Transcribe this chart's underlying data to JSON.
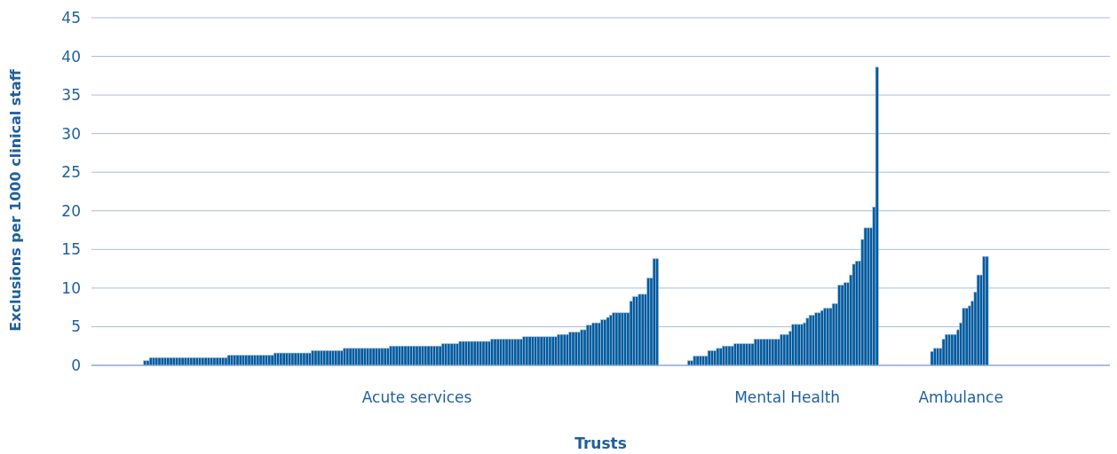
{
  "chart_data": {
    "type": "bar",
    "xlabel": "Trusts",
    "ylabel": "Exclusions per 1000 clinical staff",
    "color": "#005a9c",
    "ylim": [
      0,
      45
    ],
    "yticks": [
      0,
      5,
      10,
      15,
      20,
      25,
      30,
      35,
      40,
      45
    ],
    "grid": "y",
    "categories": [
      null,
      null,
      null,
      null,
      null,
      null,
      null,
      null,
      null,
      null,
      null,
      null,
      null,
      null,
      null,
      null,
      null,
      null,
      null,
      null,
      null,
      null,
      null,
      null,
      null,
      null,
      null,
      null,
      null,
      null,
      null,
      null,
      null,
      null,
      null,
      null,
      null,
      null,
      null,
      null,
      null,
      null,
      null,
      null,
      null,
      null,
      null,
      null,
      null,
      null,
      null,
      null,
      null,
      null,
      null,
      null,
      null,
      null,
      null,
      null,
      null,
      null,
      null,
      null,
      null,
      null,
      null,
      null,
      null,
      null,
      null,
      null,
      null,
      null,
      null,
      null,
      null,
      null,
      null,
      null,
      null,
      null,
      null,
      null,
      null,
      null,
      null,
      null,
      null,
      null,
      null,
      null,
      null,
      null,
      null,
      null,
      null,
      null,
      null,
      null,
      null,
      null,
      null,
      null,
      null,
      null,
      null,
      null,
      null,
      null,
      null,
      null,
      "Acute services",
      null,
      null,
      null,
      null,
      null,
      null,
      null,
      null,
      null,
      null,
      null,
      null,
      null,
      null,
      null,
      null,
      null,
      null,
      null,
      null,
      null,
      null,
      null,
      null,
      null,
      null,
      null,
      null,
      null,
      null,
      null,
      null,
      null,
      null,
      null,
      null,
      null,
      null,
      null,
      null,
      null,
      null,
      null,
      null,
      null,
      null,
      null,
      null,
      null,
      null,
      null,
      null,
      null,
      null,
      null,
      null,
      null,
      null,
      null,
      null,
      null,
      null,
      null,
      null,
      null,
      null,
      null,
      null,
      null,
      null,
      null,
      null,
      null,
      null,
      null,
      null,
      null,
      null,
      null,
      null,
      null,
      null,
      null,
      null,
      null,
      null,
      null,
      null,
      null,
      null,
      null,
      null,
      null,
      null,
      null,
      null,
      null,
      null,
      null,
      null,
      null,
      null,
      null,
      null,
      null,
      null,
      null,
      null,
      null,
      null,
      null,
      null,
      null,
      null,
      null,
      null,
      null,
      null,
      null,
      null,
      null,
      null,
      null,
      null,
      null,
      null,
      null,
      "Mental Health",
      null,
      null,
      null,
      null,
      null,
      null,
      null,
      null,
      null,
      null,
      null,
      null,
      null,
      null,
      null,
      null,
      null,
      null,
      null,
      null,
      null,
      null,
      null,
      null,
      null,
      null,
      null,
      null,
      null,
      null,
      null,
      null,
      null,
      null,
      null,
      null,
      null,
      null,
      null,
      null,
      null,
      null,
      null,
      null,
      null,
      null,
      null,
      null,
      null,
      null,
      null,
      null,
      null,
      null,
      null,
      null,
      null,
      null,
      null,
      "Ambulance",
      null,
      null,
      null,
      null,
      null,
      null,
      null,
      null,
      null,
      null,
      null,
      null,
      null,
      null,
      null,
      null,
      null,
      null,
      null,
      null,
      null,
      null,
      null,
      null,
      null,
      null,
      null,
      null,
      null,
      null,
      null,
      null,
      null,
      null,
      null,
      null,
      null,
      null,
      null,
      null,
      null,
      null,
      null,
      null,
      null,
      null,
      null,
      null,
      null,
      null,
      null
    ],
    "values": [
      null,
      null,
      null,
      null,
      null,
      null,
      null,
      null,
      null,
      null,
      null,
      null,
      null,
      null,
      null,
      null,
      null,
      null,
      0.6,
      0.6,
      1.0,
      1.0,
      1.0,
      1.0,
      1.0,
      1.0,
      1.0,
      1.0,
      1.0,
      1.0,
      1.0,
      1.0,
      1.0,
      1.0,
      1.0,
      1.0,
      1.0,
      1.0,
      1.0,
      1.0,
      1.0,
      1.0,
      1.0,
      1.0,
      1.0,
      1.0,
      1.0,
      1.3,
      1.3,
      1.3,
      1.3,
      1.3,
      1.3,
      1.3,
      1.3,
      1.3,
      1.3,
      1.3,
      1.3,
      1.3,
      1.3,
      1.3,
      1.3,
      1.6,
      1.6,
      1.6,
      1.6,
      1.6,
      1.6,
      1.6,
      1.6,
      1.6,
      1.6,
      1.6,
      1.6,
      1.6,
      1.9,
      1.9,
      1.9,
      1.9,
      1.9,
      1.9,
      1.9,
      1.9,
      1.9,
      1.9,
      1.9,
      2.2,
      2.2,
      2.2,
      2.2,
      2.2,
      2.2,
      2.2,
      2.2,
      2.2,
      2.2,
      2.2,
      2.2,
      2.2,
      2.2,
      2.2,
      2.2,
      2.5,
      2.5,
      2.5,
      2.5,
      2.5,
      2.5,
      2.5,
      2.5,
      2.5,
      2.5,
      2.5,
      2.5,
      2.5,
      2.5,
      2.5,
      2.5,
      2.5,
      2.5,
      2.8,
      2.8,
      2.8,
      2.8,
      2.8,
      2.8,
      3.1,
      3.1,
      3.1,
      3.1,
      3.1,
      3.1,
      3.1,
      3.1,
      3.1,
      3.1,
      3.1,
      3.4,
      3.4,
      3.4,
      3.4,
      3.4,
      3.4,
      3.4,
      3.4,
      3.4,
      3.4,
      3.4,
      3.7,
      3.7,
      3.7,
      3.7,
      3.7,
      3.7,
      3.7,
      3.7,
      3.7,
      3.7,
      3.7,
      3.7,
      4.0,
      4.0,
      4.0,
      4.0,
      4.3,
      4.3,
      4.3,
      4.3,
      4.6,
      4.6,
      5.2,
      5.2,
      5.5,
      5.5,
      5.5,
      5.9,
      5.9,
      6.2,
      6.5,
      6.8,
      6.8,
      6.8,
      6.8,
      6.8,
      6.8,
      8.3,
      8.9,
      8.9,
      9.2,
      9.2,
      9.2,
      11.3,
      11.3,
      13.8,
      13.8,
      null,
      null,
      null,
      null,
      null,
      null,
      null,
      null,
      null,
      null,
      0.6,
      0.6,
      1.2,
      1.2,
      1.2,
      1.2,
      1.2,
      1.9,
      1.9,
      1.9,
      2.2,
      2.2,
      2.5,
      2.5,
      2.5,
      2.5,
      2.8,
      2.8,
      2.8,
      2.8,
      2.8,
      2.8,
      2.8,
      3.4,
      3.4,
      3.4,
      3.4,
      3.4,
      3.4,
      3.4,
      3.4,
      3.4,
      4.0,
      4.0,
      4.0,
      4.4,
      5.3,
      5.3,
      5.3,
      5.3,
      5.5,
      6.1,
      6.5,
      6.5,
      6.8,
      6.8,
      7.1,
      7.4,
      7.4,
      7.4,
      8.0,
      8.0,
      10.4,
      10.4,
      10.7,
      10.7,
      11.7,
      13.1,
      13.5,
      13.5,
      16.3,
      17.8,
      17.8,
      17.8,
      20.5,
      38.6,
      null,
      null,
      null,
      null,
      null,
      null,
      null,
      null,
      null,
      null,
      null,
      null,
      null,
      null,
      null,
      null,
      null,
      null,
      1.8,
      2.2,
      2.2,
      2.2,
      3.4,
      4.0,
      4.0,
      4.0,
      4.0,
      4.6,
      5.5,
      7.4,
      7.4,
      7.7,
      8.3,
      9.5,
      11.7,
      11.7,
      14.1,
      14.1,
      null,
      null,
      null,
      null,
      null,
      null,
      null,
      null,
      null,
      null,
      null,
      null,
      null,
      null,
      null,
      null,
      null,
      null,
      null,
      null,
      null,
      null,
      null,
      null,
      null,
      null,
      null,
      null,
      null,
      null,
      null,
      null,
      null,
      null,
      null,
      null,
      null,
      null,
      null,
      null,
      null,
      null
    ]
  }
}
